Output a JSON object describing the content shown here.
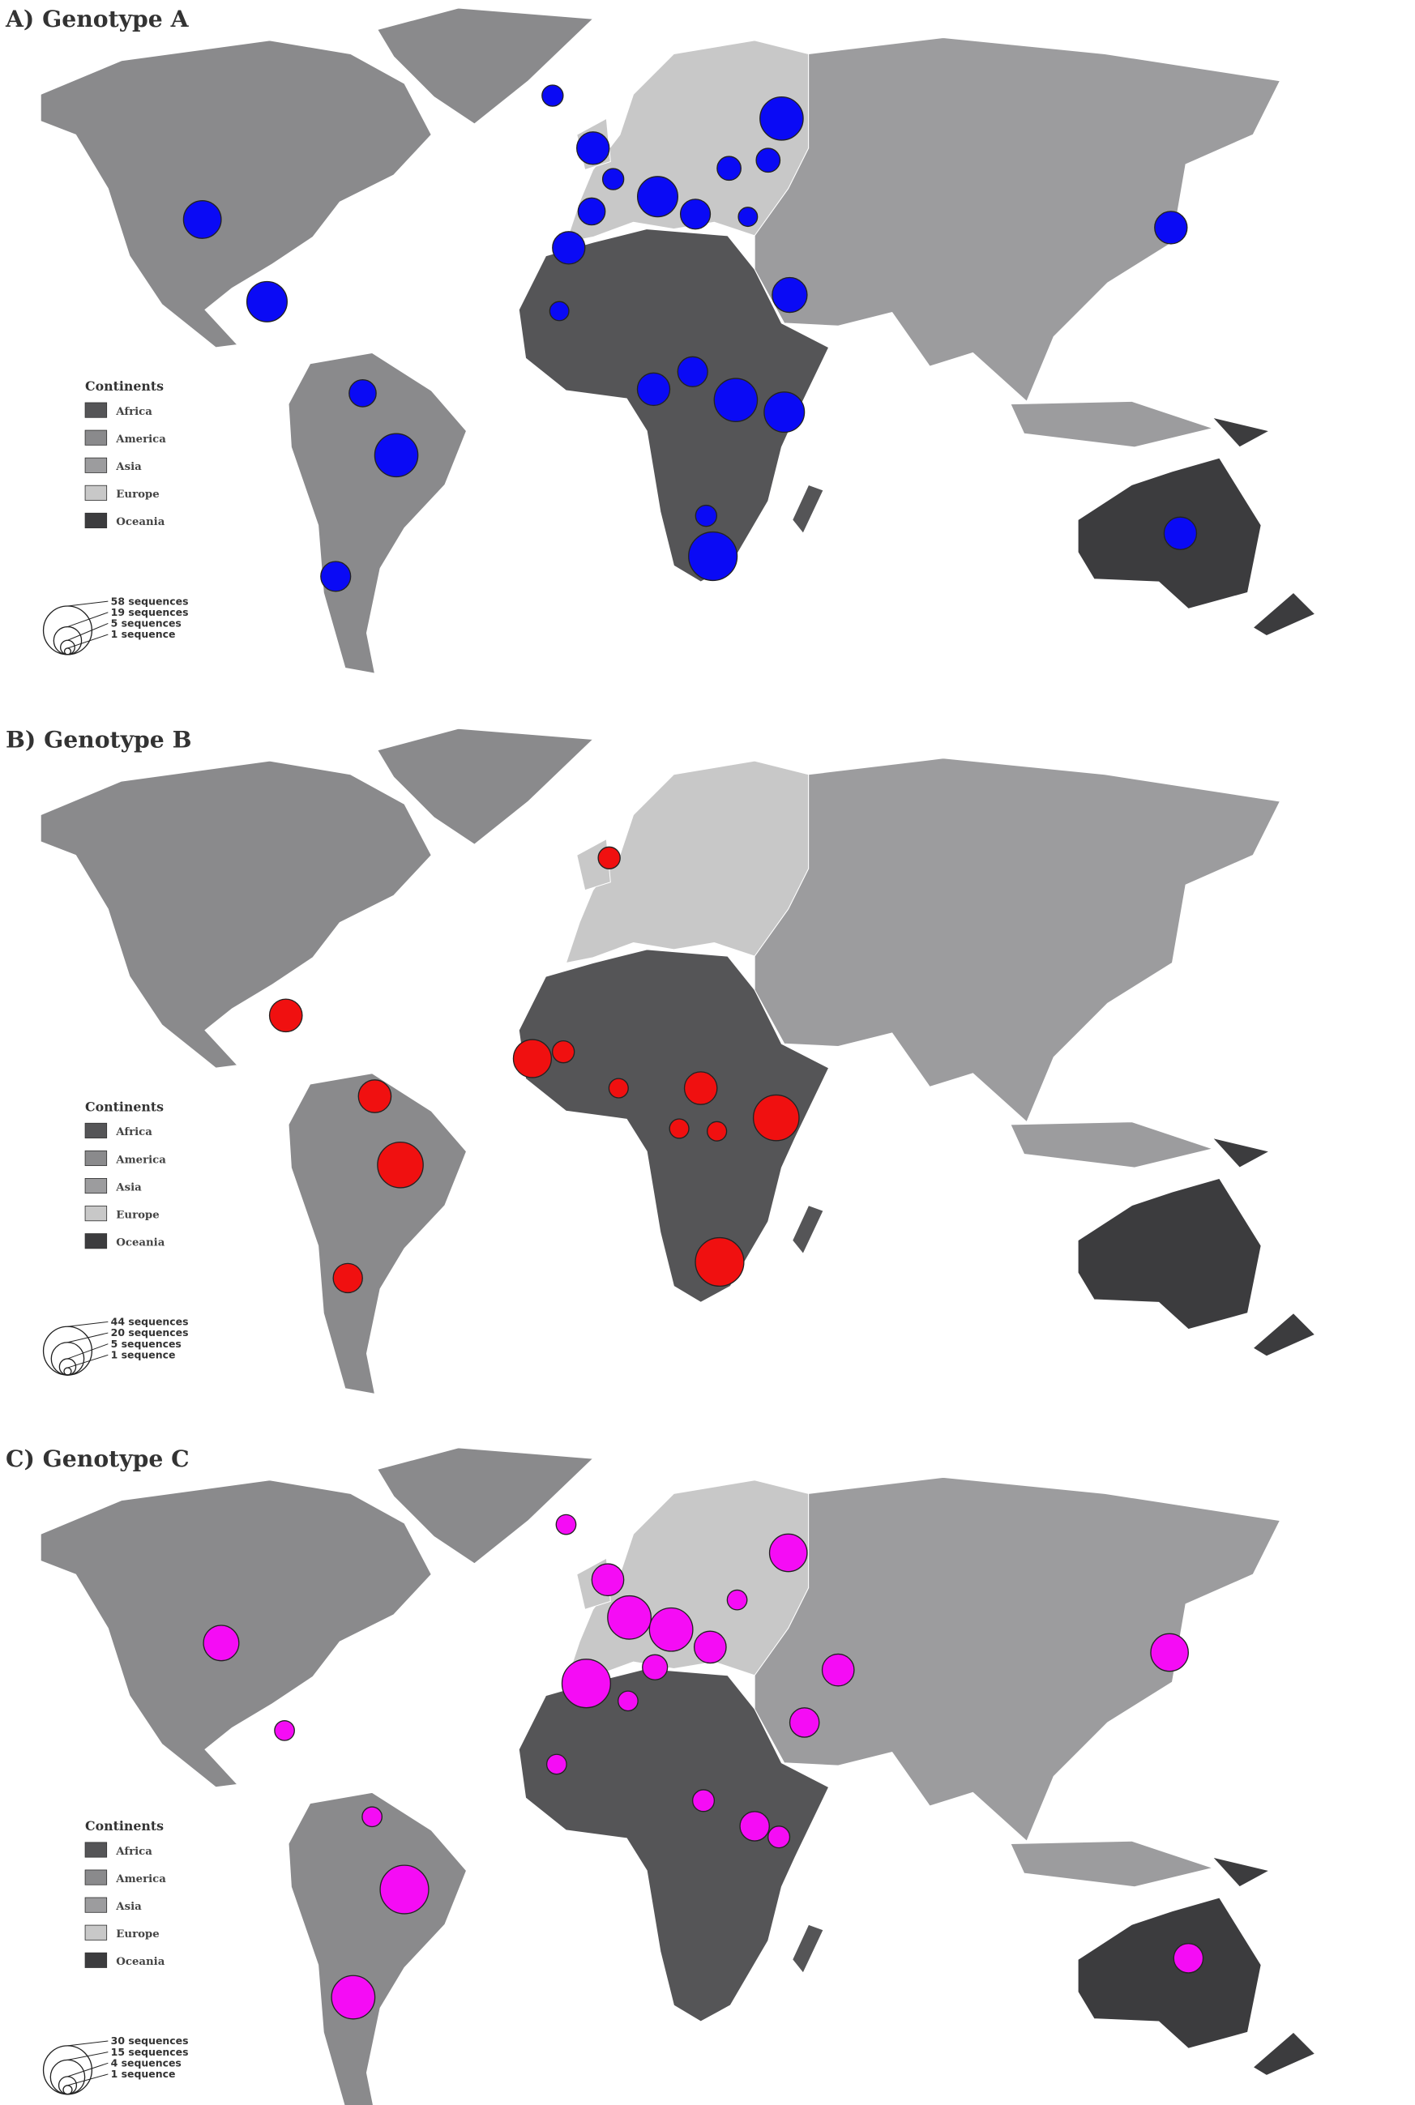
{
  "chart_data": [
    {
      "type": "bubble-map",
      "title": "A) Genotype A",
      "legend_title": "Continents",
      "legend": [
        {
          "name": "Africa",
          "color": "#555557"
        },
        {
          "name": "America",
          "color": "#8a8a8c"
        },
        {
          "name": "Asia",
          "color": "#9c9c9e"
        },
        {
          "name": "Europe",
          "color": "#c8c8c8"
        },
        {
          "name": "Oceania",
          "color": "#3c3c3e"
        }
      ],
      "size_legend": [
        {
          "value": 58,
          "label": "58 sequences"
        },
        {
          "value": 19,
          "label": "19 sequences"
        },
        {
          "value": 5,
          "label": "5 sequences"
        },
        {
          "value": 1,
          "label": "1 sequence"
        }
      ],
      "bubble_color": "#0a0af5",
      "values": [
        35,
        40,
        18,
        46,
        22,
        11,
        26,
        11,
        18,
        26,
        40,
        22,
        14,
        46,
        14,
        9,
        30,
        26,
        9,
        26,
        22,
        46,
        40,
        11,
        58,
        26
      ]
    },
    {
      "type": "bubble-map",
      "title": "B) Genotype B",
      "legend_title": "Continents",
      "legend": [
        {
          "name": "Africa",
          "color": "#555557"
        },
        {
          "name": "America",
          "color": "#8a8a8c"
        },
        {
          "name": "Asia",
          "color": "#9c9c9e"
        },
        {
          "name": "Europe",
          "color": "#c8c8c8"
        },
        {
          "name": "Oceania",
          "color": "#3c3c3e"
        }
      ],
      "size_legend": [
        {
          "value": 44,
          "label": "44 sequences"
        },
        {
          "value": 20,
          "label": "20 sequences"
        },
        {
          "value": 5,
          "label": "5 sequences"
        },
        {
          "value": 1,
          "label": "1 sequence"
        }
      ],
      "bubble_color": "#f01010",
      "values": [
        9,
        20,
        27,
        9,
        7,
        20,
        39,
        16,
        20,
        7,
        7,
        39,
        44
      ]
    },
    {
      "type": "bubble-map",
      "title": "C) Genotype C",
      "legend_title": "Continents",
      "legend": [
        {
          "name": "Africa",
          "color": "#555557"
        },
        {
          "name": "America",
          "color": "#8a8a8c"
        },
        {
          "name": "Asia",
          "color": "#9c9c9e"
        },
        {
          "name": "Europe",
          "color": "#c8c8c8"
        },
        {
          "name": "Oceania",
          "color": "#3c3c3e"
        }
      ],
      "size_legend": [
        {
          "value": 30,
          "label": "30 sequences"
        },
        {
          "value": 15,
          "label": "15 sequences"
        },
        {
          "value": 4,
          "label": "4 sequences"
        },
        {
          "value": 1,
          "label": "1 sequence"
        }
      ],
      "bubble_color": "#f50cf5",
      "values": [
        5,
        18,
        13,
        5,
        16,
        24,
        24,
        13,
        18,
        13,
        8,
        30,
        5,
        11,
        5,
        5,
        5,
        6,
        11,
        6,
        30,
        24,
        11
      ]
    }
  ]
}
